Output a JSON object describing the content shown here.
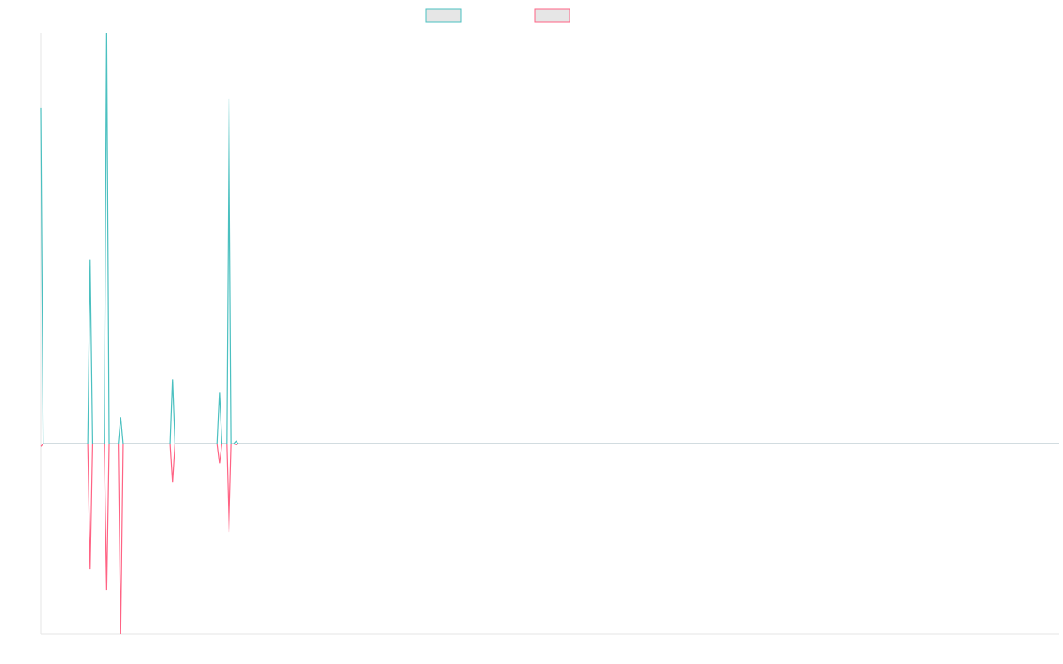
{
  "colors": {
    "series_1": "#4bc0c0",
    "series_2": "#ff6384",
    "legend_fill": "#e6e6e6",
    "axis": "#e5e5e5",
    "background": "#ffffff"
  },
  "chart_data": {
    "type": "line",
    "title": "",
    "xlabel": "",
    "ylabel": "",
    "grid": false,
    "legend_position": "top-center",
    "x": [
      0,
      1,
      2,
      3,
      4,
      5,
      6,
      7,
      8,
      9,
      10,
      11,
      12,
      13,
      14,
      15,
      16,
      17,
      18,
      19,
      20,
      21,
      22,
      23,
      24,
      25,
      26,
      27,
      28,
      29,
      30,
      31,
      32,
      33,
      34,
      35,
      36,
      37,
      38,
      39,
      40,
      41,
      42,
      43,
      44,
      45,
      46,
      47,
      48,
      49,
      50,
      51,
      52,
      53,
      54,
      55,
      56,
      57,
      58,
      59,
      60,
      61,
      62,
      63,
      64,
      65,
      66,
      67,
      68,
      69,
      70,
      71,
      72,
      73,
      74,
      75,
      76,
      77,
      78,
      79,
      80,
      81,
      82,
      83,
      84,
      85,
      86,
      87,
      88,
      89,
      90,
      91,
      92,
      93,
      94,
      95,
      96,
      97,
      98,
      99,
      100,
      101,
      102,
      103,
      104,
      105,
      106,
      107,
      108,
      109,
      110,
      111,
      112,
      113,
      114,
      115,
      116,
      117,
      118,
      119,
      120,
      121,
      122,
      123,
      124,
      125,
      126,
      127,
      128,
      129,
      130,
      131,
      132,
      133,
      134,
      135,
      136,
      137,
      138,
      139,
      140,
      141,
      142,
      143,
      144,
      145,
      146,
      147,
      148,
      149,
      150,
      151,
      152,
      153,
      154,
      155,
      156,
      157,
      158,
      159,
      160,
      161,
      162,
      163,
      164,
      165,
      166,
      167,
      168,
      169,
      170,
      171,
      172,
      173,
      174,
      175,
      176,
      177,
      178,
      179,
      180,
      181,
      182,
      183,
      184,
      185,
      186,
      187,
      188,
      189,
      190,
      191,
      192,
      193,
      194,
      195,
      196,
      197,
      198,
      199,
      200,
      201,
      202,
      203,
      204,
      205,
      206,
      207,
      208,
      209,
      210,
      211,
      212,
      213,
      214,
      215,
      216,
      217,
      218,
      219,
      220,
      221,
      222,
      223,
      224,
      225,
      226,
      227,
      228,
      229,
      230,
      231,
      232,
      233,
      234,
      235,
      236,
      237,
      238,
      239,
      240,
      241,
      242,
      243,
      244,
      245,
      246,
      247,
      248,
      249,
      250,
      251,
      252,
      253,
      254,
      255,
      256,
      257,
      258,
      259,
      260,
      261,
      262,
      263,
      264,
      265,
      266,
      267,
      268,
      269,
      270,
      271,
      272,
      273,
      274,
      275,
      276,
      277,
      278,
      279,
      280,
      281,
      282,
      283,
      284,
      285,
      286,
      287,
      288,
      289,
      290,
      291,
      292,
      293,
      294,
      295,
      296,
      297,
      298,
      299,
      300,
      301,
      302,
      303,
      304,
      305,
      306,
      307,
      308,
      309,
      310,
      311,
      312,
      313,
      314,
      315,
      316,
      317,
      318,
      319,
      320,
      321,
      322,
      323,
      324,
      325,
      326,
      327,
      328,
      329,
      330,
      331,
      332,
      333,
      334,
      335,
      336,
      337,
      338,
      339,
      340,
      341,
      342,
      343,
      344,
      345,
      346,
      347,
      348,
      349,
      350,
      351,
      352,
      353,
      354,
      355,
      356,
      357,
      358,
      359,
      360,
      361,
      362,
      363,
      364,
      365,
      366,
      367,
      368,
      369,
      370,
      371,
      372,
      373,
      374,
      375,
      376,
      377,
      378,
      379,
      380,
      381,
      382,
      383,
      384,
      385,
      386,
      387,
      388,
      389,
      390,
      391,
      392,
      393,
      394,
      395,
      396,
      397,
      398,
      399,
      400,
      401,
      402,
      403,
      404,
      405,
      406,
      407,
      408,
      409,
      410,
      411,
      412,
      413,
      414,
      415,
      416,
      417,
      418,
      419,
      420,
      421,
      422,
      423,
      424,
      425,
      426,
      427,
      428,
      429,
      430,
      431,
      432,
      433
    ],
    "ylim": [
      -215,
      465
    ],
    "series": [
      {
        "color": "#4bc0c0",
        "fill": "#e6e6e6",
        "points": [
          [
            0,
            380
          ],
          [
            1,
            0
          ],
          [
            2,
            0
          ],
          [
            20,
            0
          ],
          [
            21,
            208
          ],
          [
            22,
            0
          ],
          [
            27,
            0
          ],
          [
            28,
            465
          ],
          [
            29,
            0
          ],
          [
            33,
            0
          ],
          [
            34,
            30
          ],
          [
            35,
            0
          ],
          [
            55,
            0
          ],
          [
            56,
            73
          ],
          [
            57,
            0
          ],
          [
            75,
            0
          ],
          [
            76,
            58
          ],
          [
            77,
            0
          ],
          [
            79,
            0
          ],
          [
            80,
            390
          ],
          [
            81,
            0
          ],
          [
            82,
            0
          ],
          [
            83,
            3
          ],
          [
            84,
            0
          ],
          [
            433,
            0
          ]
        ]
      },
      {
        "color": "#ff6384",
        "fill": "#e6e6e6",
        "points": [
          [
            0,
            -3
          ],
          [
            1,
            0
          ],
          [
            2,
            0
          ],
          [
            20,
            0
          ],
          [
            21,
            -142
          ],
          [
            22,
            0
          ],
          [
            27,
            0
          ],
          [
            28,
            -165
          ],
          [
            29,
            0
          ],
          [
            33,
            0
          ],
          [
            34,
            -215
          ],
          [
            35,
            0
          ],
          [
            55,
            0
          ],
          [
            56,
            -43
          ],
          [
            57,
            0
          ],
          [
            75,
            0
          ],
          [
            76,
            -22
          ],
          [
            77,
            0
          ],
          [
            79,
            0
          ],
          [
            80,
            -100
          ],
          [
            81,
            0
          ],
          [
            82,
            0
          ],
          [
            83,
            -1
          ],
          [
            84,
            0
          ],
          [
            433,
            0
          ]
        ]
      }
    ]
  }
}
